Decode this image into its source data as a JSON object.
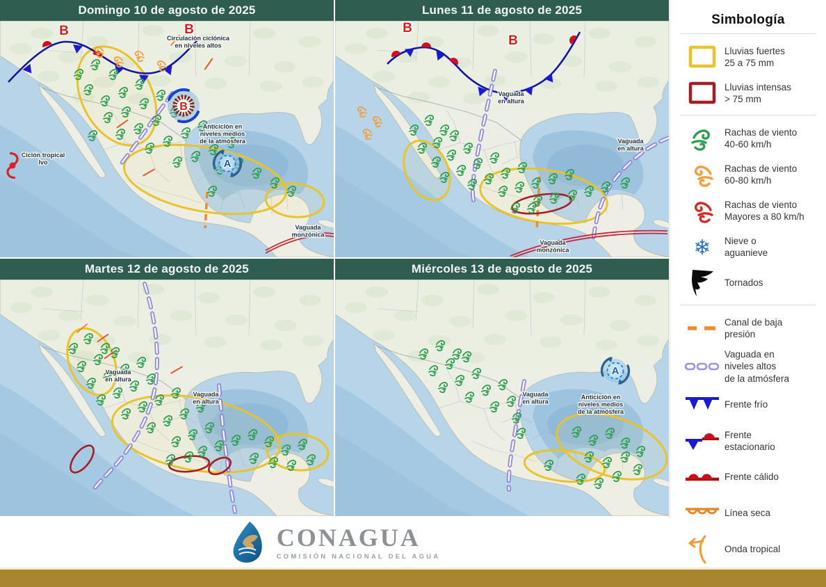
{
  "panels": [
    {
      "title": "Domingo 10 de agosto de 2025",
      "annotations": [
        {
          "id": "circulacion",
          "text": "Circulación ciclónica\nen niveles altos"
        },
        {
          "id": "anticiclon",
          "text": "Anticiclón en\nniveles medios\nde la atmósfera"
        },
        {
          "id": "ciclon",
          "text": "Ciclón tropical\nIvo"
        },
        {
          "id": "vaguada-monzonica",
          "text": "Vaguada\nmonzónica"
        },
        {
          "id": "b1",
          "text": "B"
        },
        {
          "id": "b2",
          "text": "B"
        },
        {
          "id": "b-center",
          "text": "B"
        },
        {
          "id": "a-center",
          "text": "A"
        }
      ]
    },
    {
      "title": "Lunes 11 de agosto de 2025",
      "annotations": [
        {
          "id": "vaguada-altura-1",
          "text": "Vaguada\nen altura"
        },
        {
          "id": "vaguada-altura-2",
          "text": "Vaguada\nen altura"
        },
        {
          "id": "vaguada-monzonica",
          "text": "Vaguada\nmonzónica"
        },
        {
          "id": "b1",
          "text": "B"
        },
        {
          "id": "b2",
          "text": "B"
        }
      ]
    },
    {
      "title": "Martes 12 de agosto de 2025",
      "annotations": [
        {
          "id": "vaguada-altura-1",
          "text": "Vaguada\nen altura"
        },
        {
          "id": "vaguada-altura-2",
          "text": "Vaguada\nen altura"
        }
      ]
    },
    {
      "title": "Miércoles 13 de agosto de 2025",
      "annotations": [
        {
          "id": "vaguada-altura-1",
          "text": "Vaguada\nen altura"
        },
        {
          "id": "anticiclon",
          "text": "Anticiclón en\nniveles medios\nde la atmósfera"
        },
        {
          "id": "a-center",
          "text": "A"
        }
      ]
    }
  ],
  "legend": {
    "title": "Simbología",
    "sections": [
      {
        "items": [
          {
            "icon": "rain-strong",
            "label": "Lluvias fuertes\n25 a 75 mm"
          },
          {
            "icon": "rain-intense",
            "label": "Lluvias intensas\n> 75 mm"
          }
        ]
      },
      {
        "items": [
          {
            "icon": "wind-green",
            "label": "Rachas de viento\n40-60 km/h"
          },
          {
            "icon": "wind-orange",
            "label": "Rachas de viento\n60-80 km/h"
          },
          {
            "icon": "wind-red",
            "label": "Rachas de viento\nMayores a 80 km/h"
          },
          {
            "icon": "snow",
            "label": "Nieve o\naguanieve"
          },
          {
            "icon": "tornado",
            "label": "Tornados"
          }
        ]
      },
      {
        "items": [
          {
            "icon": "low-channel",
            "label": "Canal de baja\npresión"
          },
          {
            "icon": "upper-trough",
            "label": "Vaguada en\nniveles altos\nde la atmósfera"
          },
          {
            "icon": "cold-front",
            "label": "Frente frío"
          },
          {
            "icon": "stationary-front",
            "label": "Frente\nestacionario"
          },
          {
            "icon": "warm-front",
            "label": "Frente cálido"
          },
          {
            "icon": "dry-line",
            "label": "Línea seca"
          },
          {
            "icon": "tropical-wave",
            "label": "Onda tropical"
          }
        ]
      }
    ]
  },
  "footer": {
    "brand": "CONAGUA",
    "subtitle": "COMISIÓN NACIONAL DEL AGUA"
  },
  "colors": {
    "header_green": "#2F5D50",
    "accent_bar": "#A9862E",
    "rain_strong": "#E8C32A",
    "rain_intense": "#A21F24",
    "wind_40_60": "#2E9E51",
    "wind_60_80": "#F0A03C",
    "wind_80": "#CE2C27",
    "snow": "#2B74C4",
    "upper_trough": "#837BDC",
    "low_channel": "#EE8B30",
    "cold_front": "#1A1ACF",
    "warm_front": "#C8101C"
  }
}
